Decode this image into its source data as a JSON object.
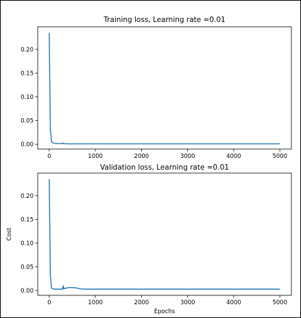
{
  "chart_data": [
    {
      "type": "line",
      "title": "Training loss, Learning rate =0.01",
      "xlabel": "",
      "ylabel": "",
      "xlim": [
        -250,
        5250
      ],
      "ylim": [
        -0.01,
        0.2475
      ],
      "xticks": [
        0,
        1000,
        2000,
        3000,
        4000,
        5000
      ],
      "xtick_labels": [
        "0",
        "1000",
        "2000",
        "3000",
        "4000",
        "5000"
      ],
      "yticks": [
        0.0,
        0.05,
        0.1,
        0.15,
        0.2
      ],
      "ytick_labels": [
        "0.00",
        "0.05",
        "0.10",
        "0.15",
        "0.20"
      ],
      "grid": false,
      "series": [
        {
          "color": "#1f77b4",
          "x": [
            0,
            10,
            25,
            50,
            100,
            200,
            290,
            300,
            310,
            400,
            600,
            1000,
            2000,
            3000,
            4000,
            5000
          ],
          "y": [
            0.235,
            0.15,
            0.03,
            0.005,
            0.002,
            0.0015,
            0.0015,
            0.003,
            0.0015,
            0.001,
            0.001,
            0.001,
            0.001,
            0.001,
            0.001,
            0.001
          ]
        }
      ]
    },
    {
      "type": "line",
      "title": "Validation loss, Learning rate =0.01",
      "xlabel": "Epochs",
      "ylabel": "Cost",
      "xlim": [
        -250,
        5250
      ],
      "ylim": [
        -0.01,
        0.2475
      ],
      "xticks": [
        0,
        1000,
        2000,
        3000,
        4000,
        5000
      ],
      "xtick_labels": [
        "0",
        "1000",
        "2000",
        "3000",
        "4000",
        "5000"
      ],
      "yticks": [
        0.0,
        0.05,
        0.1,
        0.15,
        0.2
      ],
      "ytick_labels": [
        "0.00",
        "0.05",
        "0.10",
        "0.15",
        "0.20"
      ],
      "grid": false,
      "series": [
        {
          "color": "#1f77b4",
          "x": [
            0,
            10,
            25,
            50,
            100,
            200,
            290,
            300,
            305,
            310,
            320,
            400,
            500,
            600,
            650,
            700,
            800,
            1000,
            2000,
            3000,
            4000,
            5000
          ],
          "y": [
            0.235,
            0.15,
            0.03,
            0.005,
            0.003,
            0.003,
            0.003,
            0.01,
            0.004,
            0.008,
            0.004,
            0.006,
            0.0065,
            0.0055,
            0.004,
            0.0035,
            0.003,
            0.003,
            0.003,
            0.003,
            0.003,
            0.003
          ]
        }
      ]
    }
  ]
}
